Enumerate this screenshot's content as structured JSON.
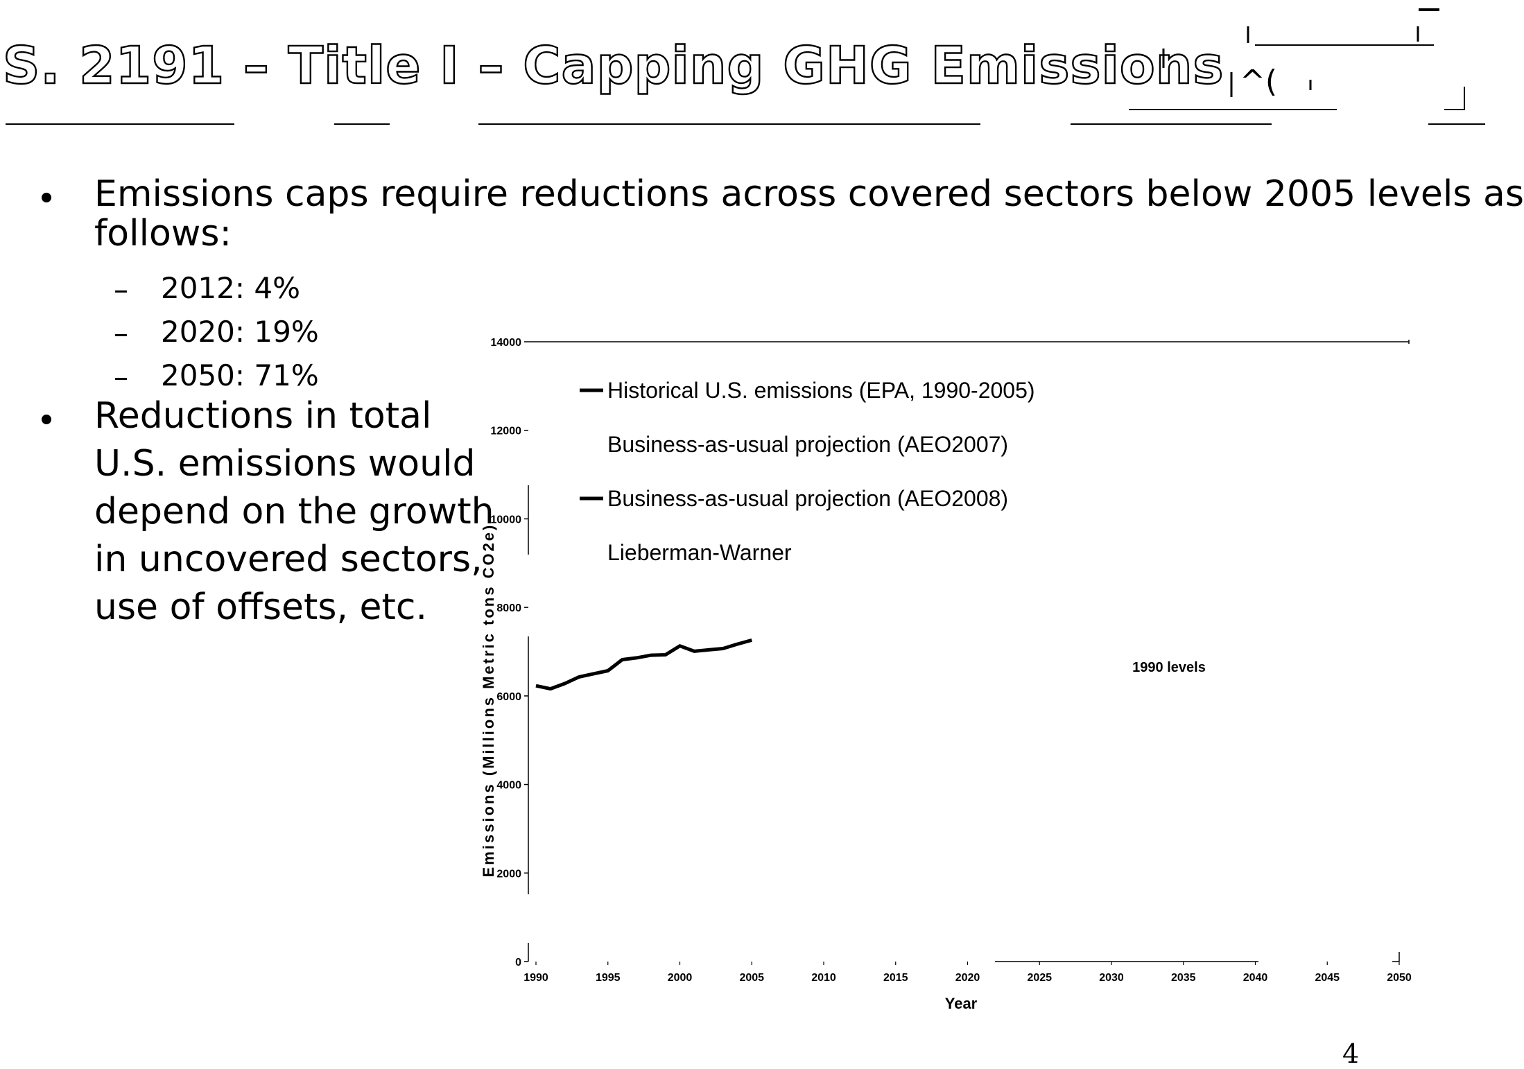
{
  "slide": {
    "title": "S. 2191 – Title I – Capping GHG Emissions",
    "page_number": "4",
    "bullets": [
      {
        "text": "Emissions caps require reductions across covered sectors below 2005 levels as"
      },
      {
        "text": "follows:"
      }
    ],
    "sub_bullets": [
      {
        "dash": "–",
        "text": "2012: 4%"
      },
      {
        "dash": "–",
        "text": "2020: 19%"
      },
      {
        "dash": "–",
        "text": "2050: 71%"
      }
    ],
    "bullet2_lines": [
      "Reductions in total",
      "U.S. emissions would",
      "depend on the growth",
      "in uncovered sectors,",
      "use of offsets, etc."
    ]
  },
  "chart_data": {
    "type": "line",
    "title": "",
    "xlabel": "Year",
    "ylabel": "Emissions (Millions Metric tons CO2e)",
    "xlim": [
      1990,
      2050
    ],
    "ylim": [
      0,
      14000
    ],
    "x_ticks": [
      "1990",
      "1995",
      "2000",
      "2005",
      "2010",
      "2015",
      "2020",
      "2025",
      "2030",
      "2035",
      "2040",
      "2045",
      "2050"
    ],
    "y_ticks": [
      "0",
      "2000",
      "4000",
      "6000",
      "8000",
      "10000",
      "12000",
      "14000"
    ],
    "legend_position": "top-left",
    "annotations": [
      {
        "text": "1990 levels",
        "x": 2034,
        "y": 6700
      }
    ],
    "series": [
      {
        "name": "Historical U.S. emissions (EPA, 1990-2005)",
        "color": "#000000",
        "x": [
          1990,
          1991,
          1992,
          1993,
          1994,
          1995,
          1996,
          1997,
          1998,
          1999,
          2000,
          2001,
          2002,
          2003,
          2004,
          2005
        ],
        "y": [
          6230,
          6160,
          6280,
          6430,
          6500,
          6570,
          6820,
          6860,
          6920,
          6930,
          7130,
          7010,
          7040,
          7070,
          7170,
          7260
        ]
      },
      {
        "name": "Business-as-usual projection (AEO2007)",
        "color": "#000000",
        "x": [],
        "y": []
      },
      {
        "name": "Business-as-usual projection (AEO2008)",
        "color": "#000000",
        "x": [],
        "y": []
      },
      {
        "name": "Lieberman-Warner",
        "color": "#000000",
        "x": [],
        "y": []
      }
    ]
  }
}
